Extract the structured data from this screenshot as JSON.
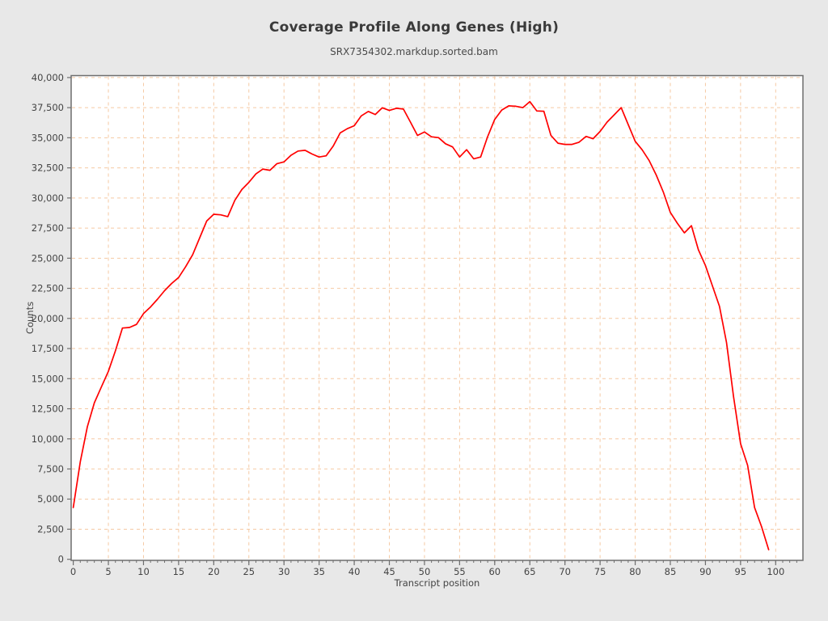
{
  "title": "Coverage Profile Along Genes (High)",
  "subtitle": "SRX7354302.markdup.sorted.bam",
  "axes": {
    "xlabel": "Transcript position",
    "ylabel": "Counts"
  },
  "colors": {
    "page_background": "#e8e8e8",
    "plot_background": "#ffffff",
    "grid": "#f5c9a3",
    "frame": "#6e6e6e",
    "tick": "#6e6e6e",
    "line": "#ff0000",
    "text": "#444444"
  },
  "chart_data": {
    "type": "line",
    "title": "Coverage Profile Along Genes (High)",
    "subtitle": "SRX7354302.markdup.sorted.bam",
    "xlabel": "Transcript position",
    "ylabel": "Counts",
    "xlim": [
      0,
      104
    ],
    "ylim": [
      0,
      40000
    ],
    "grid": true,
    "legend_position": "none",
    "x_major_ticks": [
      0,
      5,
      10,
      15,
      20,
      25,
      30,
      35,
      40,
      45,
      50,
      55,
      60,
      65,
      70,
      75,
      80,
      85,
      90,
      95,
      100
    ],
    "x_minor_tick_step": 1,
    "y_major_ticks": [
      0,
      2500,
      5000,
      7500,
      10000,
      12500,
      15000,
      17500,
      20000,
      22500,
      25000,
      27500,
      30000,
      32500,
      35000,
      37500,
      40000
    ],
    "series": [
      {
        "name": "SRX7354302.markdup.sorted.bam",
        "color": "#ff0000",
        "x_start": 0,
        "x_step": 1,
        "values": [
          4300,
          8100,
          11000,
          13000,
          14300,
          15600,
          17300,
          19200,
          19250,
          19500,
          20400,
          20950,
          21600,
          22300,
          22900,
          23400,
          24300,
          25300,
          26700,
          28100,
          28650,
          28600,
          28450,
          29800,
          30700,
          31300,
          32000,
          32400,
          32300,
          32850,
          33000,
          33550,
          33900,
          33960,
          33650,
          33400,
          33500,
          34300,
          35400,
          35750,
          36000,
          36820,
          37190,
          36930,
          37490,
          37270,
          37450,
          37380,
          36300,
          35190,
          35480,
          35080,
          35010,
          34500,
          34240,
          33400,
          34010,
          33250,
          33400,
          35100,
          36520,
          37300,
          37650,
          37620,
          37500,
          38000,
          37230,
          37200,
          35200,
          34550,
          34450,
          34450,
          34630,
          35110,
          34920,
          35520,
          36300,
          36900,
          37500,
          36100,
          34700,
          34000,
          33100,
          31900,
          30500,
          28800,
          27900,
          27100,
          27700,
          25700,
          24400,
          22700,
          21000,
          18000,
          13500,
          9600,
          7800,
          4300,
          2700,
          800
        ]
      }
    ]
  }
}
